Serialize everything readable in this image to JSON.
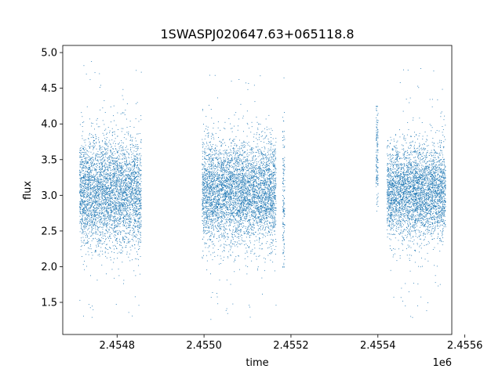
{
  "chart_data": {
    "type": "scatter",
    "title": "1SWASPJ020647.63+065118.8",
    "xlabel": "time",
    "ylabel": "flux",
    "x_offset_label": "1e6",
    "xlim": [
      2454675,
      2455570
    ],
    "ylim": [
      1.05,
      5.1
    ],
    "x_ticks": [
      2454800,
      2455000,
      2455200,
      2455400,
      2455600
    ],
    "x_tick_labels": [
      "2.4548",
      "2.4550",
      "2.4552",
      "2.4554",
      "2.4556"
    ],
    "y_ticks": [
      1.5,
      2.0,
      2.5,
      3.0,
      3.5,
      4.0,
      4.5,
      5.0
    ],
    "y_tick_labels": [
      "1.5",
      "2.0",
      "2.5",
      "3.0",
      "3.5",
      "4.0",
      "4.5",
      "5.0"
    ],
    "grid": false,
    "marker_color": "#1f77b4",
    "series": [
      {
        "segments": [
          {
            "x_start": 2454713,
            "x_end": 2454855,
            "y_center": 3.05,
            "y_spread": 0.38,
            "y_min": 1.25,
            "y_max": 4.9
          },
          {
            "x_start": 2454995,
            "x_end": 2455165,
            "y_center": 3.05,
            "y_spread": 0.35,
            "y_min": 1.25,
            "y_max": 4.75
          },
          {
            "x_start": 2455180,
            "x_end": 2455185,
            "y_center": 3.0,
            "y_spread": 0.6,
            "y_min": 2.0,
            "y_max": 4.65
          },
          {
            "x_start": 2455395,
            "x_end": 2455400,
            "y_center": 3.5,
            "y_spread": 0.4,
            "y_min": 2.7,
            "y_max": 4.25
          },
          {
            "x_start": 2455420,
            "x_end": 2455555,
            "y_center": 3.05,
            "y_spread": 0.33,
            "y_min": 1.25,
            "y_max": 4.8
          }
        ]
      }
    ]
  }
}
